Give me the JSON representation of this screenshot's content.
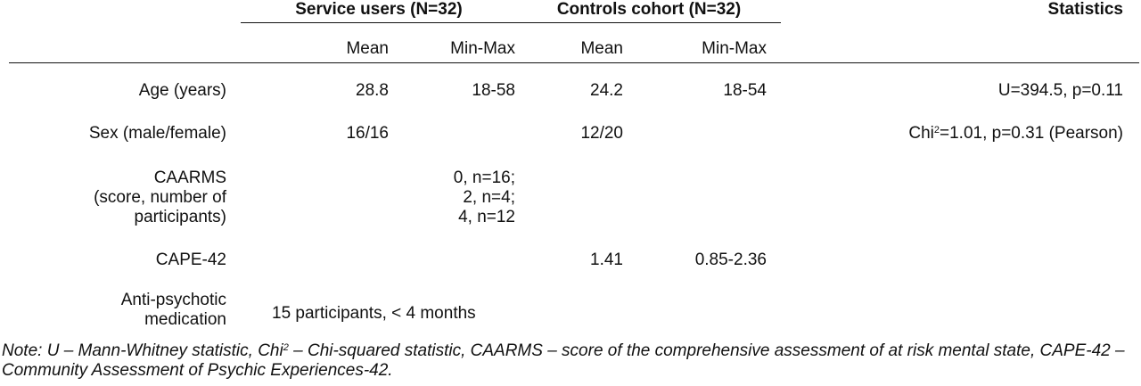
{
  "header": {
    "service_users": "Service users (N=32)",
    "controls_cohort": "Controls cohort (N=32)",
    "statistics": "Statistics",
    "sub": [
      "Mean",
      "Min-Max",
      "Mean",
      "Min-Max"
    ]
  },
  "rows": {
    "age": {
      "label": "Age (years)",
      "su_mean": "28.8",
      "su_minmax": "18-58",
      "c_mean": "24.2",
      "c_minmax": "18-54",
      "stat": "U=394.5, p=0.11"
    },
    "sex": {
      "label": "Sex (male/female)",
      "su_mean": "16/16",
      "c_mean": "12/20",
      "stat_prefix": "Chi",
      "stat_sup": "2",
      "stat_suffix": "=1.01, p=0.31 (Pearson)"
    },
    "caarms": {
      "label_lines": [
        "CAARMS",
        "(score, number of",
        "participants)"
      ],
      "su_lines": [
        "0, n=16;",
        "2, n=4;",
        "4, n=12"
      ]
    },
    "cape": {
      "label": "CAPE-42",
      "c_mean": "1.41",
      "c_minmax": "0.85-2.36"
    },
    "antipsych": {
      "label_lines": [
        "Anti-psychotic",
        "medication"
      ],
      "su_value": "15 participants, < 4 months"
    }
  },
  "note": {
    "part1": "Note: U – Mann-Whitney statistic, Chi",
    "sup": "2",
    "part2": " – Chi-squared statistic, CAARMS – score of the comprehensive assessment of at risk mental state, CAPE-42 – Community Assessment of Psychic Experiences-42."
  }
}
